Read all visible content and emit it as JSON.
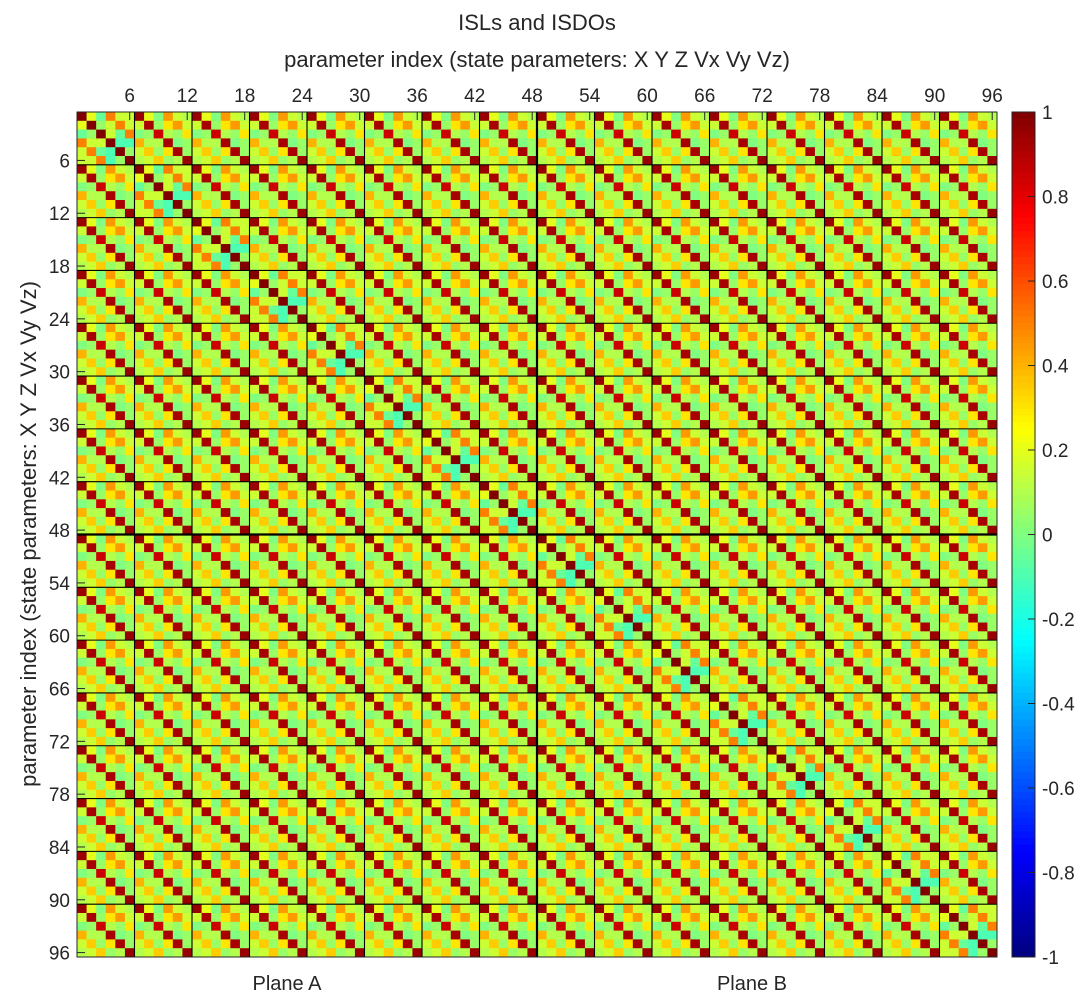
{
  "chart_data": {
    "type": "heatmap",
    "title": "ISLs and ISDOs",
    "xlabel": "parameter index (state parameters: X Y Z Vx Vy Vz)",
    "ylabel": "parameter index (state parameters: X Y Z Vx Vy Vz)",
    "size": 96,
    "block_size": 6,
    "x_ticks": [
      6,
      12,
      18,
      24,
      30,
      36,
      42,
      48,
      54,
      60,
      66,
      72,
      78,
      84,
      90,
      96
    ],
    "y_ticks": [
      6,
      12,
      18,
      24,
      30,
      36,
      42,
      48,
      54,
      60,
      66,
      72,
      78,
      84,
      90,
      96
    ],
    "x_axis_position": "top",
    "group_labels": [
      "Plane A",
      "Plane B"
    ],
    "colormap": "jet",
    "clim": [
      -1,
      1
    ],
    "colorbar_ticks": [
      1,
      0.8,
      0.6,
      0.4,
      0.2,
      0,
      -0.2,
      -0.4,
      -0.6,
      -0.8,
      -1
    ],
    "block_grid": true,
    "diagonal_block_values": [
      [
        1.0,
        0.2,
        -0.05,
        0.5,
        0.15,
        0.15
      ],
      [
        0.2,
        1.0,
        0.05,
        0.15,
        0.5,
        0.15
      ],
      [
        -0.05,
        0.05,
        1.0,
        0.15,
        -0.05,
        0.5
      ],
      [
        0.5,
        0.15,
        0.15,
        1.0,
        -0.1,
        -0.1
      ],
      [
        0.15,
        0.5,
        -0.05,
        -0.1,
        1.0,
        0.05
      ],
      [
        0.15,
        0.15,
        0.5,
        -0.1,
        0.05,
        1.0
      ]
    ],
    "off_diagonal_block_values": [
      [
        0.95,
        0.2,
        0.0,
        0.45,
        0.15,
        0.1
      ],
      [
        0.15,
        0.92,
        0.05,
        0.3,
        0.45,
        0.15
      ],
      [
        0.0,
        0.05,
        0.85,
        0.1,
        0.05,
        0.3
      ],
      [
        0.4,
        0.1,
        0.1,
        0.92,
        0.0,
        0.05
      ],
      [
        0.15,
        0.35,
        0.05,
        0.3,
        0.92,
        0.05
      ],
      [
        0.1,
        0.15,
        0.35,
        0.05,
        0.1,
        0.95
      ]
    ]
  }
}
